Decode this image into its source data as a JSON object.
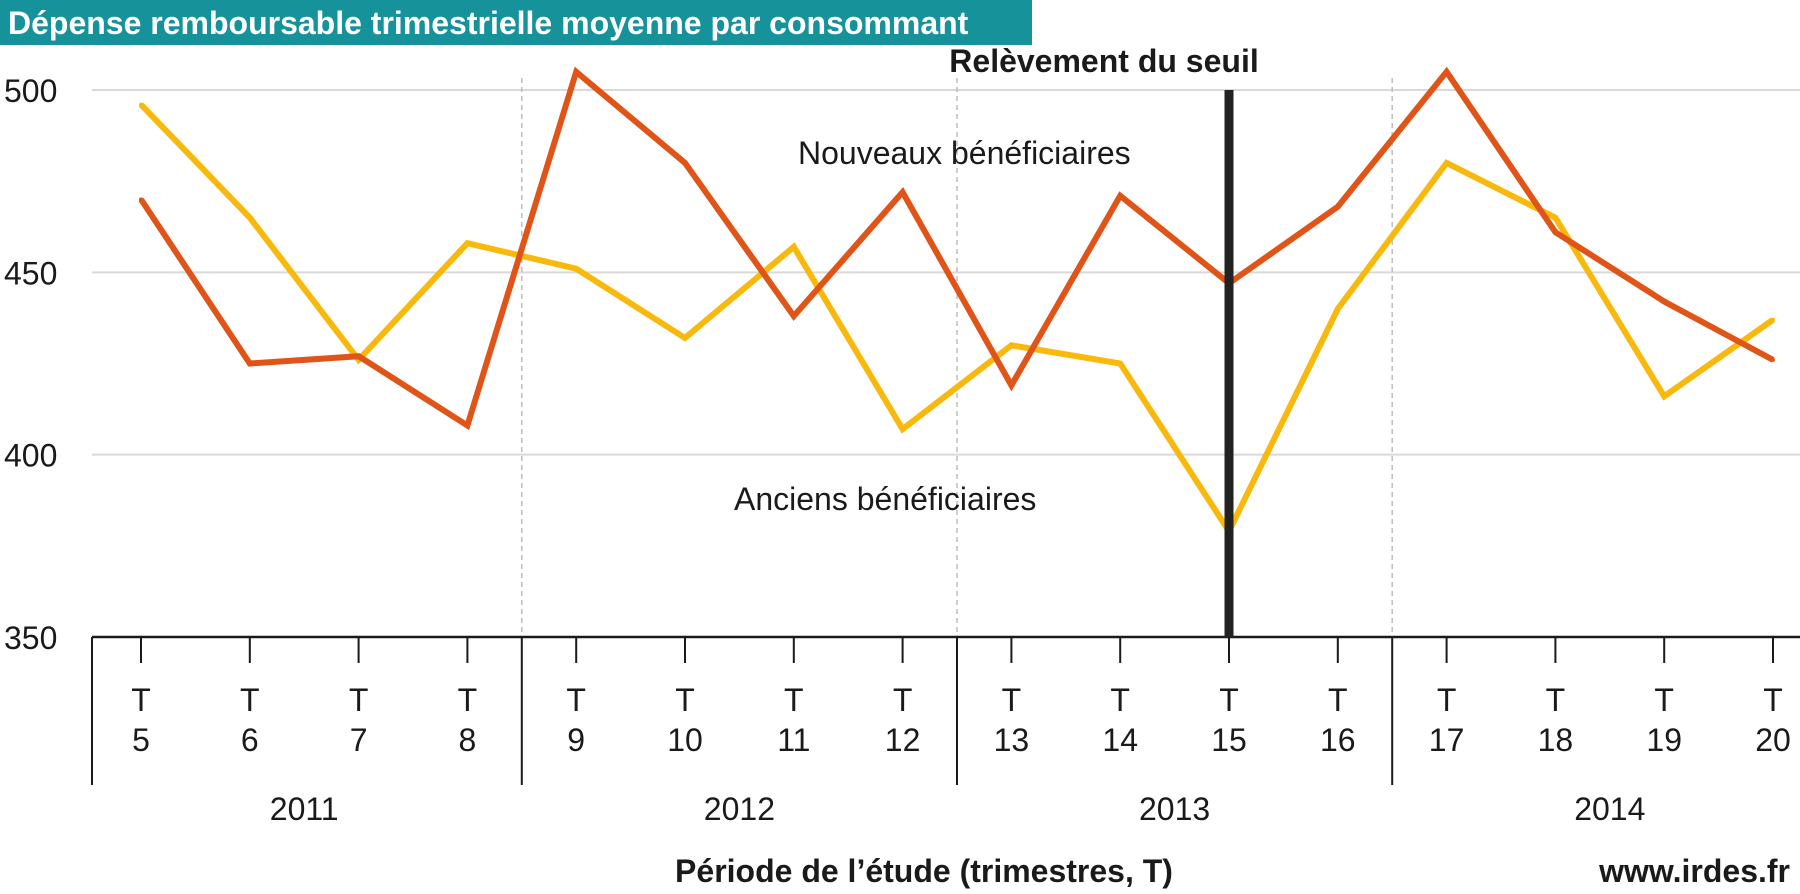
{
  "chart_data": {
    "type": "line",
    "title": "Dépense remboursable trimestrielle moyenne par consommant",
    "xlabel": "Période de l’étude (trimestres, T)",
    "ylabel": "",
    "ylim": [
      350,
      500
    ],
    "yticks": [
      "350",
      "400",
      "450",
      "500"
    ],
    "x": [
      5,
      6,
      7,
      8,
      9,
      10,
      11,
      12,
      13,
      14,
      15,
      16,
      17,
      18,
      19,
      20
    ],
    "tick_prefix": "T",
    "tick_labels": [
      "5",
      "6",
      "7",
      "8",
      "9",
      "10",
      "11",
      "12",
      "13",
      "14",
      "15",
      "16",
      "17",
      "18",
      "19",
      "20"
    ],
    "years": [
      {
        "label": "2011",
        "from": 5,
        "to": 8
      },
      {
        "label": "2012",
        "from": 9,
        "to": 12
      },
      {
        "label": "2013",
        "from": 13,
        "to": 16
      },
      {
        "label": "2014",
        "from": 17,
        "to": 20
      }
    ],
    "series": [
      {
        "name": "Nouveaux bénéficiaires",
        "color": "#e05418",
        "values": [
          470,
          425,
          427,
          408,
          505,
          480,
          438,
          472,
          419,
          471,
          447,
          468,
          505,
          461,
          442,
          426
        ]
      },
      {
        "name": "Anciens bénéficiaires",
        "color": "#f8b80c",
        "values": [
          496,
          465,
          426,
          458,
          451,
          432,
          457,
          407,
          430,
          425,
          379,
          440,
          480,
          465,
          416,
          437
        ]
      }
    ],
    "annotation": {
      "label": "Relèvement du seuil",
      "x": 15,
      "color": "#222222"
    },
    "grid": true,
    "legend": "inline"
  },
  "title_bg": "#16929a",
  "source": "www.irdes.fr"
}
